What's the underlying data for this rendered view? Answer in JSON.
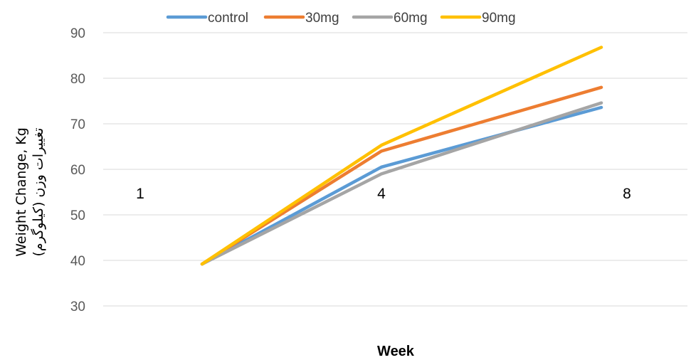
{
  "chart_data": {
    "type": "line",
    "title": "",
    "xlabel": "Week",
    "ylabel": "Weight Change, Kg",
    "ylabel2": "تغییرات وزن (کیلوگرم)",
    "x": [
      "1",
      "4",
      "8"
    ],
    "ylim": [
      30,
      90
    ],
    "yticks": [
      30,
      40,
      50,
      60,
      70,
      80,
      90
    ],
    "grid": true,
    "legend_position": "top",
    "series": [
      {
        "name": "control",
        "color": "#5B9BD5",
        "values": [
          39.2,
          60.5,
          73.6
        ]
      },
      {
        "name": "30mg",
        "color": "#ED7D31",
        "values": [
          39.2,
          64.0,
          78.0
        ]
      },
      {
        "name": "60mg",
        "color": "#A5A5A5",
        "values": [
          39.2,
          59.0,
          74.6
        ]
      },
      {
        "name": "90mg",
        "color": "#FFC000",
        "values": [
          39.2,
          65.3,
          86.8
        ]
      }
    ]
  }
}
